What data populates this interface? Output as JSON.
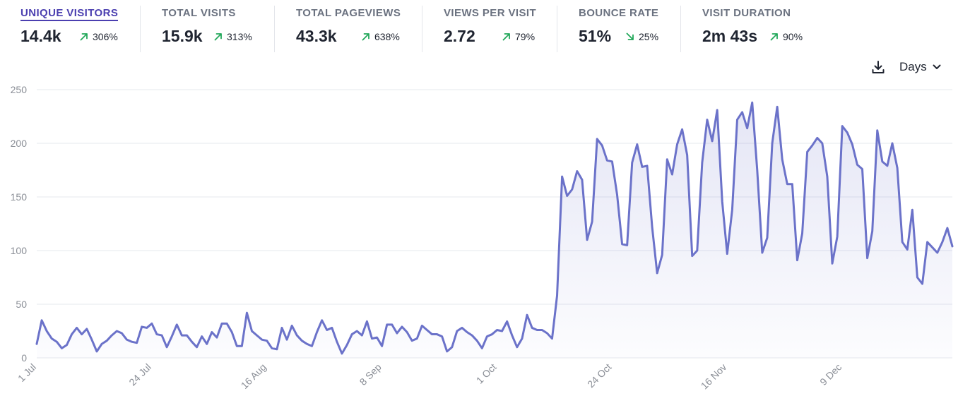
{
  "metrics": [
    {
      "label": "UNIQUE VISITORS",
      "value": "14.4k",
      "change": "306%",
      "direction": "up"
    },
    {
      "label": "TOTAL VISITS",
      "value": "15.9k",
      "change": "313%",
      "direction": "up"
    },
    {
      "label": "TOTAL PAGEVIEWS",
      "value": "43.3k",
      "change": "638%",
      "direction": "up"
    },
    {
      "label": "VIEWS PER VISIT",
      "value": "2.72",
      "change": "79%",
      "direction": "up"
    },
    {
      "label": "BOUNCE RATE",
      "value": "51%",
      "change": "25%",
      "direction": "down"
    },
    {
      "label": "VISIT DURATION",
      "value": "2m 43s",
      "change": "90%",
      "direction": "up"
    }
  ],
  "toolbar": {
    "download_icon": "download-icon",
    "interval_label": "Days",
    "interval_icon": "chevron-down-icon"
  },
  "colors": {
    "line": "#6b72c9",
    "fill": "#e8eaf7",
    "grid": "#e6e8ee",
    "up": "#22a85a",
    "down": "#22a85a",
    "accent": "#4b3fb0"
  },
  "chart_data": {
    "type": "area",
    "title": "",
    "xlabel": "",
    "ylabel": "",
    "ylim": [
      0,
      250
    ],
    "yticks": [
      0,
      50,
      100,
      150,
      200,
      250
    ],
    "grid": true,
    "x_start": "2023-07-01",
    "xtick_labels": [
      "1 Jul",
      "24 Jul",
      "16 Aug",
      "8 Sep",
      "1 Oct",
      "24 Oct",
      "16 Nov",
      "9 Dec"
    ],
    "xtick_days": [
      0,
      23,
      46,
      69,
      92,
      115,
      138,
      161
    ],
    "series": [
      {
        "values": [
          13,
          35,
          25,
          18,
          15,
          9,
          12,
          22,
          28,
          22,
          27,
          17,
          6,
          13,
          16,
          21,
          25,
          23,
          17,
          15,
          14,
          29,
          28,
          32,
          22,
          21,
          10,
          20,
          31,
          21,
          21,
          15,
          10,
          20,
          13,
          24,
          19,
          32,
          32,
          24,
          11,
          11,
          42,
          25,
          21,
          17,
          16,
          9,
          8,
          28,
          17,
          30,
          21,
          16,
          13,
          11,
          24,
          35,
          26,
          28,
          15,
          4,
          12,
          22,
          25,
          21,
          34,
          18,
          19,
          11,
          31,
          31,
          23,
          29,
          24,
          16,
          18,
          30,
          26,
          22,
          22,
          20,
          6,
          10,
          25,
          28,
          24,
          21,
          16,
          9,
          20,
          22,
          26,
          25,
          34,
          21,
          10,
          18,
          40,
          28,
          26,
          26,
          23,
          18,
          58,
          169,
          151,
          157,
          174,
          166,
          110,
          127,
          204,
          198,
          184,
          183,
          152,
          106,
          105,
          182,
          199,
          178,
          179,
          122,
          79,
          96,
          185,
          171,
          199,
          213,
          189,
          95,
          100,
          182,
          222,
          202,
          231,
          146,
          97,
          138,
          222,
          229,
          214,
          238,
          175,
          98,
          112,
          200,
          234,
          185,
          162,
          162,
          91,
          116,
          192,
          198,
          205,
          200,
          169,
          88,
          113,
          216,
          210,
          199,
          180,
          176,
          93,
          118,
          212,
          183,
          179,
          200,
          177,
          108,
          101,
          138,
          75,
          69,
          108,
          103,
          98,
          108,
          121,
          104
        ]
      }
    ]
  }
}
